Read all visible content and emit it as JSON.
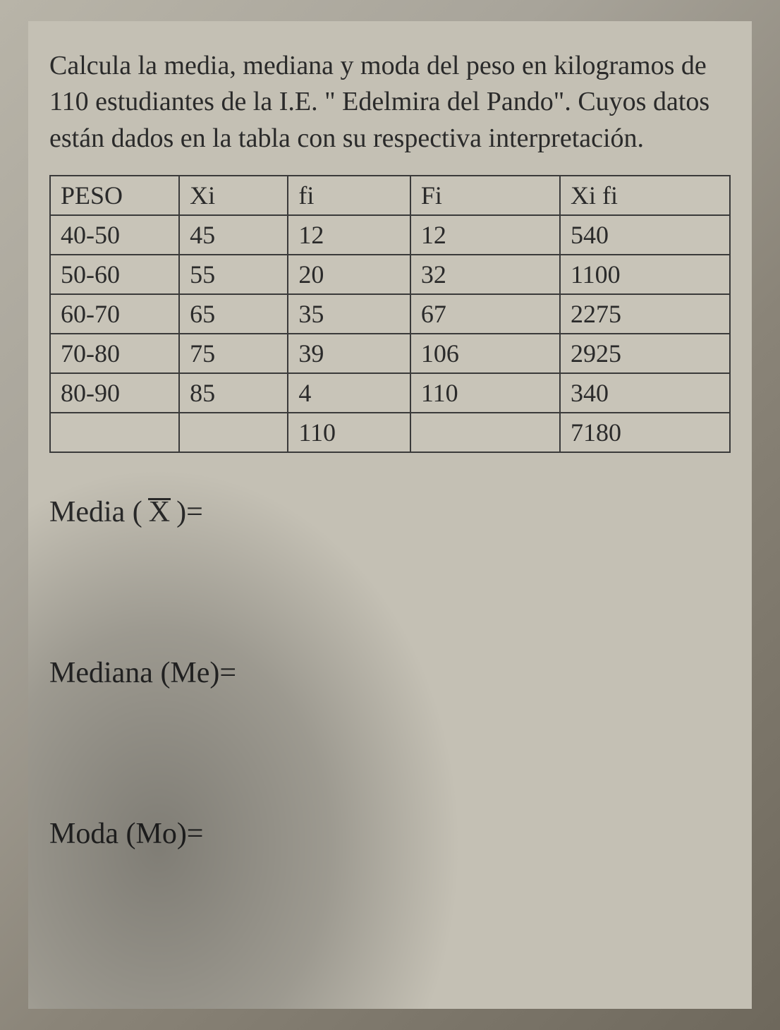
{
  "fragment_top": "",
  "problem": "Calcula la media, mediana y moda del peso en kilogramos de 110 estudiantes de la I.E. \" Edelmira del Pando\". Cuyos datos están dados en la tabla con su respectiva interpretación.",
  "table": {
    "columns": [
      "PESO",
      "Xi",
      "fi",
      "Fi",
      "Xi fi"
    ],
    "rows": [
      [
        "40-50",
        "45",
        "12",
        "12",
        "540"
      ],
      [
        "50-60",
        "55",
        "20",
        "32",
        "1100"
      ],
      [
        "60-70",
        "65",
        "35",
        "67",
        "2275"
      ],
      [
        "70-80",
        "75",
        "39",
        "106",
        "2925"
      ],
      [
        "80-90",
        "85",
        "4",
        "110",
        "340"
      ],
      [
        "",
        "",
        "110",
        "",
        "7180"
      ]
    ],
    "border_color": "#3a3a3a",
    "cell_bg": "#c8c4b8",
    "font_size": 36
  },
  "measures": {
    "media_label_prefix": "Media (",
    "media_symbol": "X",
    "media_label_suffix": ")=",
    "mediana_label": "Mediana (Me)=",
    "moda_label": "Moda (Mo)="
  },
  "colors": {
    "paper_bg": "#c4c0b4",
    "text": "#2a2a2a"
  },
  "font_sizes": {
    "problem": 38,
    "table": 36,
    "measures": 42
  }
}
